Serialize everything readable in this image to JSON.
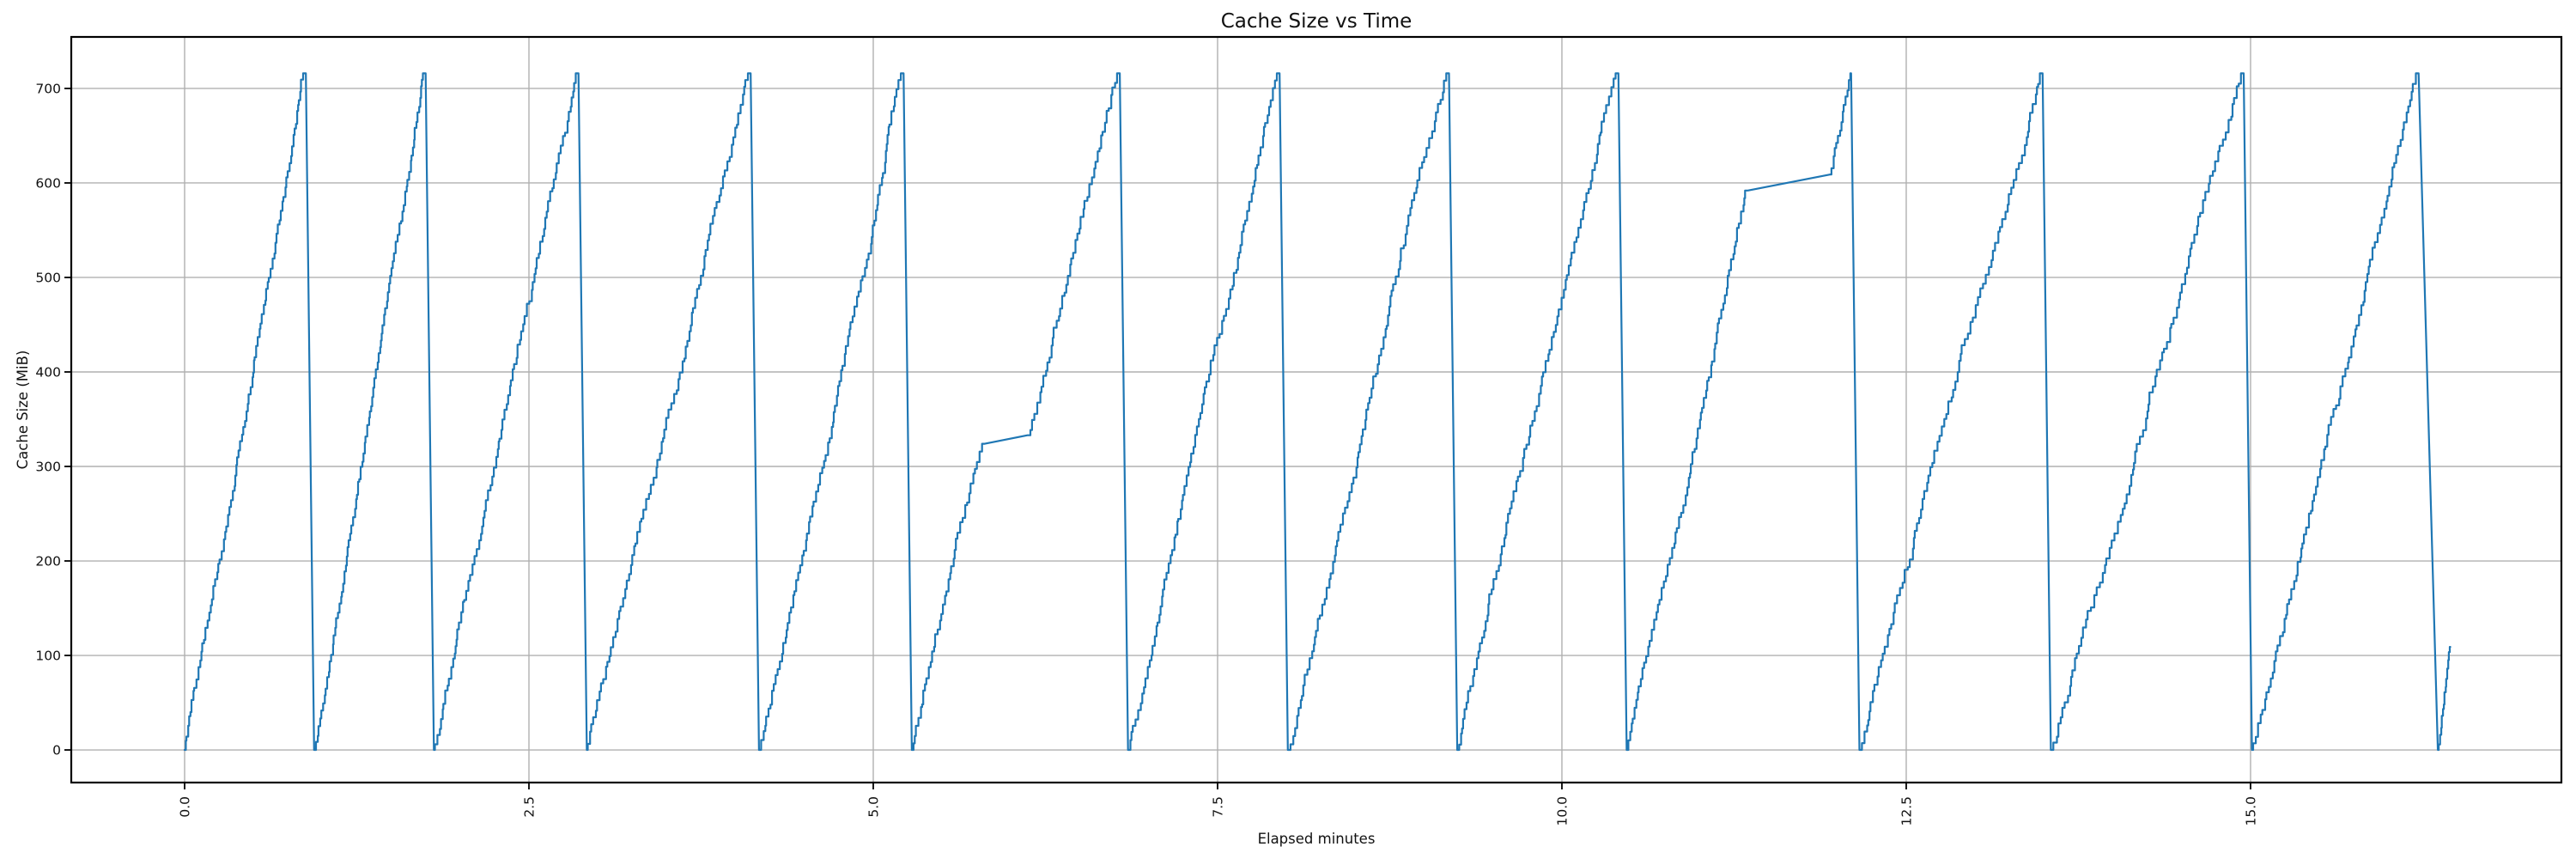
{
  "page": {
    "background": "#ffffff"
  },
  "chart_data": {
    "type": "line",
    "title": "Cache Size vs Time",
    "xlabel": "Elapsed minutes",
    "ylabel": "Cache Size (MiB)",
    "grid": true,
    "legend": "none",
    "grid_color": "#b0b0b0",
    "line_color": "#1f77b4",
    "axis_color": "#000000",
    "text_color": "#111111",
    "xlim": [
      -0.823,
      17.257
    ],
    "ylim": [
      -34.5,
      754.5
    ],
    "x_ticks": [
      0.0,
      2.5,
      5.0,
      7.5,
      10.0,
      12.5,
      15.0
    ],
    "x_tick_labels": [
      "0.0",
      "2.5",
      "5.0",
      "7.5",
      "10.0",
      "12.5",
      "15.0"
    ],
    "y_ticks": [
      0,
      100,
      200,
      300,
      400,
      500,
      600,
      700
    ],
    "y_tick_labels": [
      "0",
      "100",
      "200",
      "300",
      "400",
      "500",
      "600",
      "700"
    ],
    "peak_mib": 716,
    "step_height_mib": 8.5,
    "series": [
      {
        "name": "cache_size",
        "description": "Sawtooth cache growth: stepped ramps from 0 to ~716 MiB followed by instant eviction to 0; two cycles contain mid-ramp plateaus (~325 MiB near minute 5.8-6.1 and ~590-610 MiB near minute 11.35-11.95).",
        "cycles": [
          {
            "anchors": [
              [
                0.0,
                0
              ],
              [
                0.88,
                716,
                "steps"
              ],
              [
                0.94,
                0,
                "line"
              ]
            ]
          },
          {
            "anchors": [
              [
                0.94,
                0
              ],
              [
                1.75,
                716,
                "steps"
              ],
              [
                1.81,
                0,
                "line"
              ]
            ]
          },
          {
            "anchors": [
              [
                1.81,
                0
              ],
              [
                2.86,
                716,
                "steps"
              ],
              [
                2.92,
                0,
                "line"
              ]
            ]
          },
          {
            "anchors": [
              [
                2.92,
                0
              ],
              [
                4.11,
                716,
                "steps"
              ],
              [
                4.17,
                0,
                "line"
              ]
            ]
          },
          {
            "anchors": [
              [
                4.17,
                0
              ],
              [
                5.22,
                716,
                "steps"
              ],
              [
                5.28,
                0,
                "line"
              ]
            ]
          },
          {
            "anchors": [
              [
                5.28,
                0
              ],
              [
                5.81,
                324,
                "steps"
              ],
              [
                6.12,
                333,
                "line"
              ],
              [
                6.79,
                716,
                "steps"
              ],
              [
                6.85,
                0,
                "line"
              ]
            ]
          },
          {
            "anchors": [
              [
                6.85,
                0
              ],
              [
                7.95,
                716,
                "steps"
              ],
              [
                8.01,
                0,
                "line"
              ]
            ]
          },
          {
            "anchors": [
              [
                8.01,
                0
              ],
              [
                9.18,
                716,
                "steps"
              ],
              [
                9.24,
                0,
                "line"
              ]
            ]
          },
          {
            "anchors": [
              [
                9.24,
                0
              ],
              [
                10.41,
                716,
                "steps"
              ],
              [
                10.47,
                0,
                "line"
              ]
            ]
          },
          {
            "anchors": [
              [
                10.47,
                0
              ],
              [
                11.35,
                592,
                "steps"
              ],
              [
                11.95,
                609,
                "line"
              ],
              [
                12.1,
                716,
                "steps"
              ],
              [
                12.16,
                0,
                "line"
              ]
            ]
          },
          {
            "anchors": [
              [
                12.16,
                0
              ],
              [
                13.49,
                716,
                "steps"
              ],
              [
                13.55,
                0,
                "line"
              ]
            ]
          },
          {
            "anchors": [
              [
                13.55,
                0
              ],
              [
                14.95,
                716,
                "steps"
              ],
              [
                15.01,
                0,
                "line"
              ]
            ]
          },
          {
            "anchors": [
              [
                15.01,
                0
              ],
              [
                16.22,
                716,
                "steps"
              ],
              [
                16.36,
                0,
                "line"
              ]
            ]
          },
          {
            "anchors": [
              [
                16.36,
                0
              ],
              [
                16.45,
                109,
                "steps"
              ]
            ]
          }
        ]
      }
    ]
  }
}
